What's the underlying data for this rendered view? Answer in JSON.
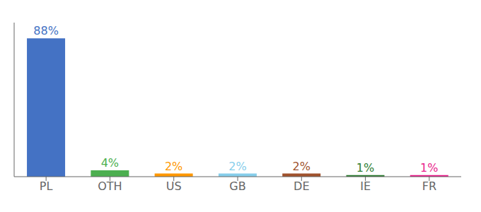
{
  "chart_data": {
    "type": "bar",
    "categories": [
      "PL",
      "OTH",
      "US",
      "GB",
      "DE",
      "IE",
      "FR"
    ],
    "values": [
      88,
      4,
      2,
      2,
      2,
      1,
      1
    ],
    "value_labels": [
      "88%",
      "4%",
      "2%",
      "2%",
      "2%",
      "1%",
      "1%"
    ],
    "colors": [
      "#4472C4",
      "#4CAF50",
      "#FF9800",
      "#87CEEB",
      "#A0522D",
      "#2E7D32",
      "#E91E8C"
    ],
    "ylim": [
      0,
      98
    ],
    "data_labels": true,
    "tick_labels": "x",
    "grid": false
  }
}
